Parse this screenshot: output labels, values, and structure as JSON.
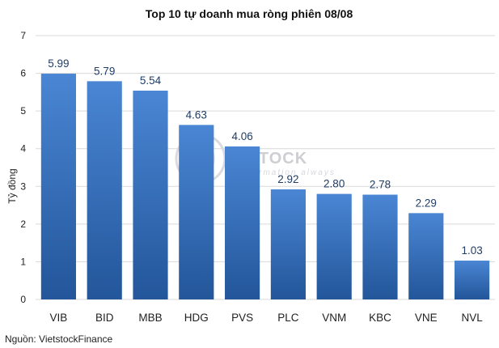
{
  "chart_data": {
    "type": "bar",
    "title": "Top 10 tự doanh mua ròng phiên 08/08",
    "ylabel": "Tỷ đồng",
    "xlabel": "",
    "categories": [
      "VIB",
      "BID",
      "MBB",
      "HDG",
      "PVS",
      "PLC",
      "VNM",
      "KBC",
      "VNE",
      "NVL"
    ],
    "values": [
      5.99,
      5.79,
      5.54,
      4.63,
      4.06,
      2.92,
      2.8,
      2.78,
      2.29,
      1.03
    ],
    "value_labels": [
      "5.99",
      "5.79",
      "5.54",
      "4.63",
      "4.06",
      "2.92",
      "2.80",
      "2.78",
      "2.29",
      "1.03"
    ],
    "ylim": [
      0,
      7
    ],
    "yticks": [
      0,
      1,
      2,
      3,
      4,
      5,
      6,
      7
    ],
    "grid": true,
    "bar_color_top": "#4a86d4",
    "bar_color_bottom": "#23569a",
    "grid_color": "#d9d9d9"
  },
  "source": "Nguồn: VietstockFinance",
  "watermark": {
    "text": "ETSTOCK",
    "subtext": "information always"
  }
}
